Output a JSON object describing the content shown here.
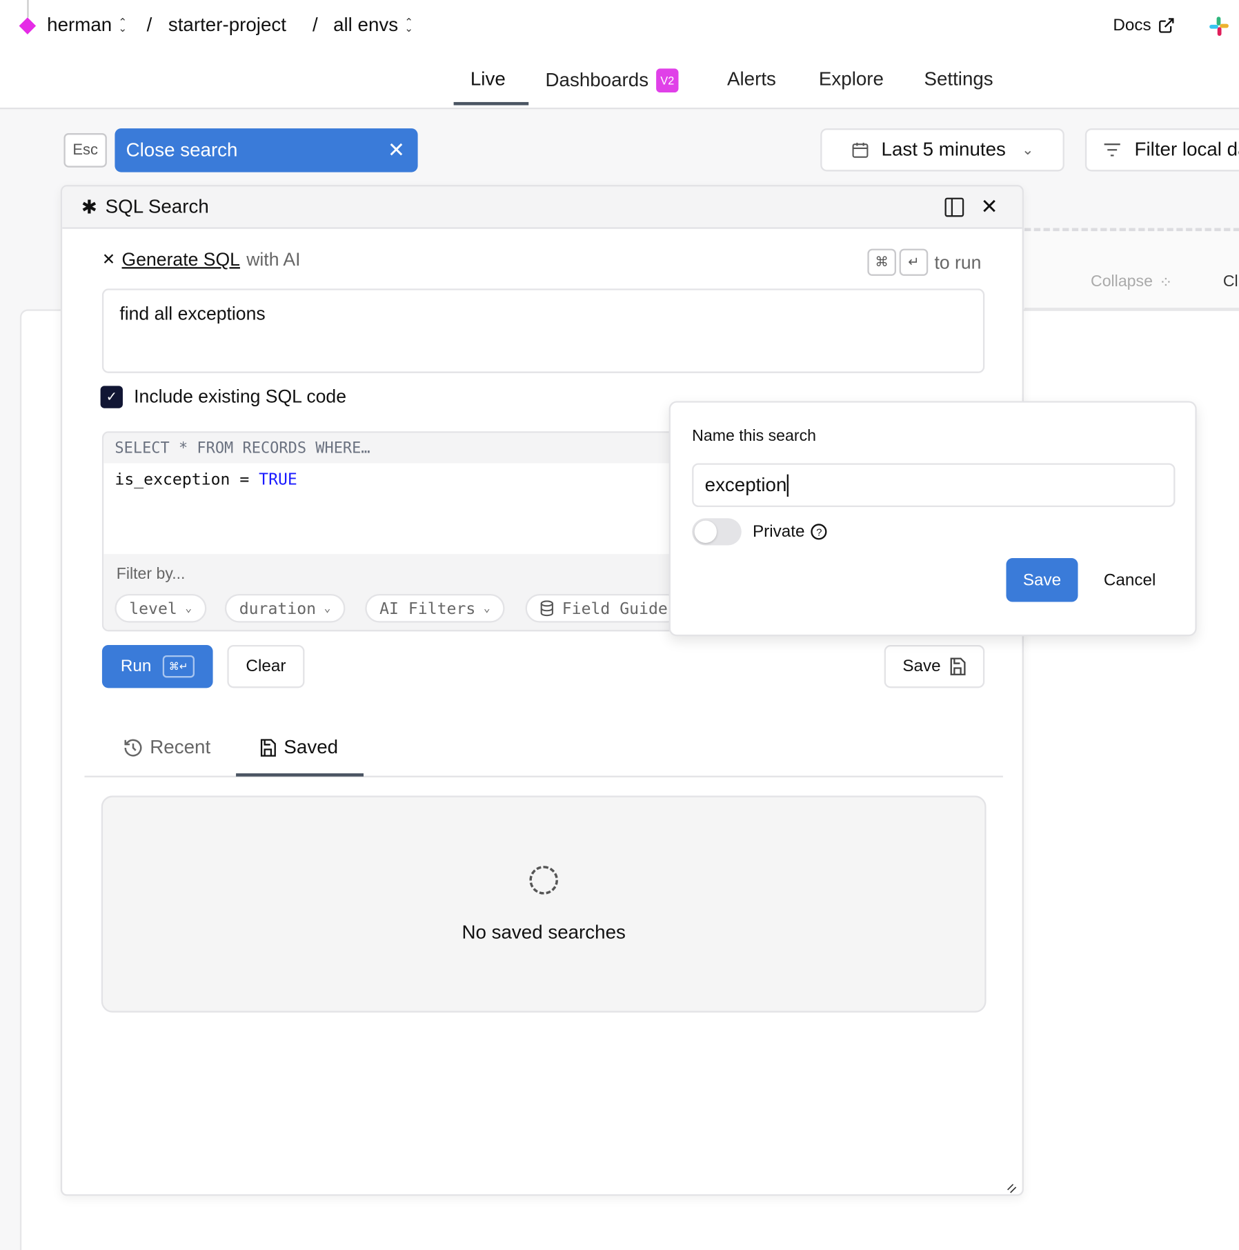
{
  "breadcrumb": {
    "org": "herman",
    "project": "starter-project",
    "env": "all envs",
    "separator": "/"
  },
  "header": {
    "docs": "Docs"
  },
  "nav": {
    "tabs": [
      {
        "label": "Live",
        "active": true
      },
      {
        "label": "Dashboards",
        "badge": "V2"
      },
      {
        "label": "Alerts"
      },
      {
        "label": "Explore"
      },
      {
        "label": "Settings"
      }
    ]
  },
  "toolbar": {
    "esc": "Esc",
    "close_search": "Close search",
    "time_range": "Last 5 minutes",
    "filter": "Filter local da"
  },
  "background": {
    "collapse": "Collapse",
    "cut_off": "Cl"
  },
  "panel": {
    "title": "SQL Search",
    "ai": {
      "link": "Generate SQL",
      "suffix": "with AI",
      "shortcut_cmd": "⌘",
      "shortcut_enter": "↵",
      "to_run": "to run",
      "prompt": "find all exceptions"
    },
    "include_sql": {
      "label": "Include existing SQL code",
      "checked": true
    },
    "code": {
      "prefix": "SELECT * FROM RECORDS WHERE…",
      "line_ident": "is_exception",
      "line_op": "=",
      "line_value": "TRUE"
    },
    "filter": {
      "label": "Filter by...",
      "chips": [
        "level",
        "duration",
        "AI Filters",
        "Field Guide"
      ]
    },
    "run": "Run",
    "run_kbd": "⌘↵",
    "clear": "Clear",
    "save": "Save",
    "tabs": [
      {
        "label": "Recent"
      },
      {
        "label": "Saved",
        "active": true
      }
    ],
    "empty": "No saved searches"
  },
  "popover": {
    "title": "Name this search",
    "name_value": "exception",
    "private_label": "Private",
    "private_on": false,
    "save": "Save",
    "cancel": "Cancel"
  },
  "colors": {
    "accent": "#3a7bd9",
    "brand": "#e52ce6",
    "badge": "#e040e8"
  }
}
